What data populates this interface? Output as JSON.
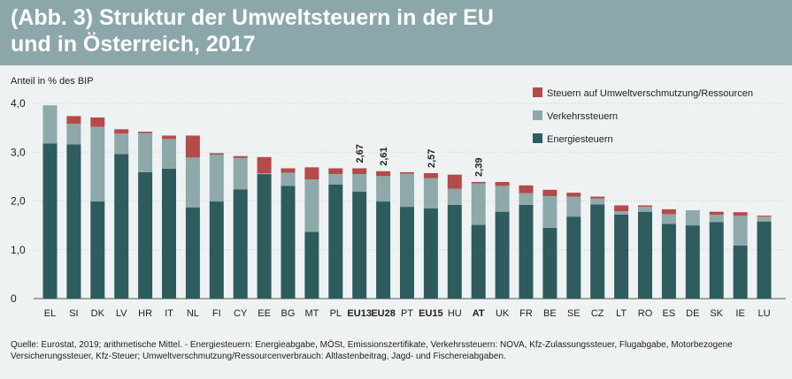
{
  "header": {
    "title_line1": "(Abb. 3) Struktur der Umweltsteuern in der EU",
    "title_line2": "und in Österreich, 2017"
  },
  "footnote": {
    "line1": "Quelle: Eurostat, 2019; arithmetische Mittel. - Energiesteuern: Energieabgabe, MÖSt, Emissionszertifikate, Verkehrssteuern: NOVA, Kfz-Zulassungssteuer, Flugabgabe, Motorbezogene",
    "line2": "Versicherungssteuer, Kfz-Steuer; Umweltverschmutzung/Ressourcenverbrauch: Altlastenbeitrag, Jagd- und Fischereiabgaben."
  },
  "colors": {
    "energy": "#2e5b5d",
    "transport": "#8fa9ab",
    "pollution": "#b54b48",
    "header": "#8ba7a9",
    "background": "#eef2f2",
    "grid": "#c9d2d2"
  },
  "chart_data": {
    "type": "bar",
    "stacked": true,
    "ylabel": "Anteil in % des BIP",
    "ylim": [
      0,
      4
    ],
    "yticks": [
      "0",
      "1,0",
      "2,0",
      "3,0",
      "4,0"
    ],
    "grid": true,
    "legend_position": "top-right",
    "categories": [
      "EL",
      "SI",
      "DK",
      "LV",
      "HR",
      "IT",
      "NL",
      "FI",
      "CY",
      "EE",
      "BG",
      "MT",
      "PL",
      "EU13",
      "EU28",
      "PT",
      "EU15",
      "HU",
      "AT",
      "UK",
      "FR",
      "BE",
      "SE",
      "CZ",
      "LT",
      "RO",
      "ES",
      "DE",
      "SK",
      "IE",
      "LU"
    ],
    "bold_categories": [
      "EU13",
      "EU28",
      "EU15",
      "AT"
    ],
    "series": [
      {
        "name": "Energiesteuern",
        "values": [
          3.18,
          3.16,
          1.99,
          2.96,
          2.59,
          2.66,
          1.87,
          1.99,
          2.24,
          2.55,
          2.31,
          1.37,
          2.34,
          2.19,
          1.99,
          1.88,
          1.85,
          1.92,
          1.51,
          1.78,
          1.92,
          1.45,
          1.68,
          1.93,
          1.72,
          1.78,
          1.53,
          1.5,
          1.57,
          1.09,
          1.58
        ]
      },
      {
        "name": "Verkehrssteuern",
        "values": [
          0.78,
          0.42,
          1.53,
          0.42,
          0.8,
          0.61,
          1.02,
          0.96,
          0.64,
          0.02,
          0.27,
          1.07,
          0.21,
          0.36,
          0.52,
          0.68,
          0.62,
          0.33,
          0.85,
          0.53,
          0.24,
          0.65,
          0.41,
          0.12,
          0.07,
          0.1,
          0.2,
          0.31,
          0.15,
          0.61,
          0.1
        ]
      },
      {
        "name": "Steuern auf Umweltverschmutzung/Ressourcen",
        "values": [
          0.0,
          0.16,
          0.19,
          0.09,
          0.03,
          0.07,
          0.45,
          0.03,
          0.04,
          0.33,
          0.09,
          0.25,
          0.12,
          0.12,
          0.1,
          0.03,
          0.1,
          0.29,
          0.03,
          0.08,
          0.16,
          0.13,
          0.08,
          0.04,
          0.12,
          0.03,
          0.1,
          0.0,
          0.06,
          0.07,
          0.02
        ]
      }
    ],
    "data_labels": {
      "EU13": "2,67",
      "EU28": "2,61",
      "EU15": "2,57",
      "AT": "2,39"
    },
    "legend": [
      "Steuern auf Umweltverschmutzung/Ressourcen",
      "Verkehrssteuern",
      "Energiesteuern"
    ]
  }
}
